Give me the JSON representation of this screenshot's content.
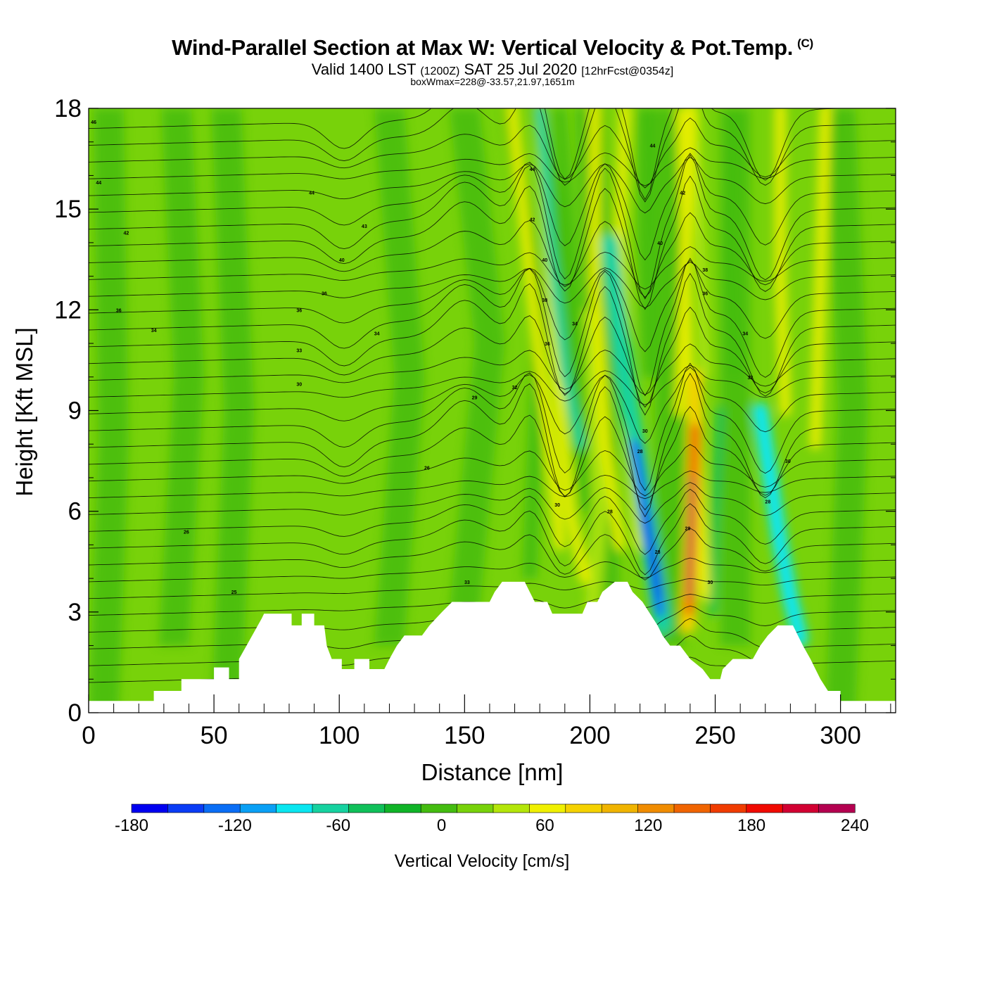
{
  "header": {
    "title": "Wind-Parallel Section at Max W: Vertical Velocity & Pot.Temp.",
    "copyright": "(C)",
    "valid_prefix": "Valid 1400 LST",
    "valid_zulu": "(1200Z)",
    "valid_date": "SAT 25 Jul 2020",
    "forecast": "[12hrFcst@0354z]",
    "box_wmax": "boxWmax=228@-33.57,21.97,1651m"
  },
  "chart_data": {
    "type": "heatmap",
    "title": "Wind-Parallel Section at Max W: Vertical Velocity & Pot.Temp.",
    "xlabel": "Distance [nm]",
    "ylabel": "Height [Kft MSL]",
    "xlim": [
      0,
      322
    ],
    "ylim": [
      0,
      18
    ],
    "x_ticks": [
      0,
      50,
      100,
      150,
      200,
      250,
      300
    ],
    "y_ticks": [
      0,
      3,
      6,
      9,
      12,
      15,
      18
    ],
    "colorbar": {
      "label": "Vertical Velocity [cm/s]",
      "min": -180,
      "max": 240,
      "step": 20,
      "tick_values": [
        -180,
        -120,
        -60,
        0,
        60,
        120,
        180,
        240
      ],
      "colors": [
        "#0000f0",
        "#0a3cf5",
        "#0a6ef5",
        "#0aa0f5",
        "#0ae6f0",
        "#16d2a0",
        "#10c05a",
        "#10b428",
        "#44bc10",
        "#78d20a",
        "#b4e60a",
        "#f0f000",
        "#f5d200",
        "#f0b400",
        "#f08c00",
        "#f06400",
        "#f03c00",
        "#f00a00",
        "#d20032",
        "#b40050"
      ]
    },
    "terrain": [
      [
        0,
        0.35
      ],
      [
        26,
        0.35
      ],
      [
        26,
        0.65
      ],
      [
        37,
        0.65
      ],
      [
        37,
        1.0
      ],
      [
        50,
        1.0
      ],
      [
        50,
        1.35
      ],
      [
        56,
        1.35
      ],
      [
        56,
        1.0
      ],
      [
        60,
        1.0
      ],
      [
        60,
        1.6
      ],
      [
        63,
        2.0
      ],
      [
        66,
        2.4
      ],
      [
        69,
        2.8
      ],
      [
        70,
        2.95
      ],
      [
        81,
        2.95
      ],
      [
        81,
        2.6
      ],
      [
        85,
        2.6
      ],
      [
        85,
        2.95
      ],
      [
        90,
        2.95
      ],
      [
        90,
        2.6
      ],
      [
        94,
        2.6
      ],
      [
        95,
        2.0
      ],
      [
        97,
        1.6
      ],
      [
        101,
        1.6
      ],
      [
        101,
        1.3
      ],
      [
        106,
        1.3
      ],
      [
        106,
        1.6
      ],
      [
        112,
        1.6
      ],
      [
        112,
        1.3
      ],
      [
        118,
        1.3
      ],
      [
        120,
        1.6
      ],
      [
        123,
        2.0
      ],
      [
        126,
        2.3
      ],
      [
        133,
        2.3
      ],
      [
        136,
        2.6
      ],
      [
        141,
        3.0
      ],
      [
        145,
        3.3
      ],
      [
        160,
        3.3
      ],
      [
        162,
        3.6
      ],
      [
        165,
        3.9
      ],
      [
        174,
        3.9
      ],
      [
        176,
        3.6
      ],
      [
        178,
        3.3
      ],
      [
        183,
        3.3
      ],
      [
        185,
        2.95
      ],
      [
        195,
        2.95
      ],
      [
        197,
        2.95
      ],
      [
        199,
        3.3
      ],
      [
        203,
        3.3
      ],
      [
        205,
        3.6
      ],
      [
        210,
        3.9
      ],
      [
        215,
        3.9
      ],
      [
        217,
        3.6
      ],
      [
        221,
        3.3
      ],
      [
        224,
        2.95
      ],
      [
        227,
        2.6
      ],
      [
        229,
        2.3
      ],
      [
        232,
        2.0
      ],
      [
        236,
        2.0
      ],
      [
        240,
        1.6
      ],
      [
        245,
        1.3
      ],
      [
        248,
        1.0
      ],
      [
        252,
        1.0
      ],
      [
        253,
        1.3
      ],
      [
        257,
        1.6
      ],
      [
        265,
        1.6
      ],
      [
        268,
        2.0
      ],
      [
        271,
        2.3
      ],
      [
        275,
        2.6
      ],
      [
        281,
        2.6
      ],
      [
        283,
        2.3
      ],
      [
        285,
        2.0
      ],
      [
        288,
        1.6
      ],
      [
        290,
        1.3
      ],
      [
        292,
        1.0
      ],
      [
        295,
        0.65
      ],
      [
        300,
        0.65
      ],
      [
        300,
        0.35
      ],
      [
        322,
        0.35
      ]
    ],
    "isentrope_labels": [
      {
        "x": 2,
        "y": 17.6,
        "text": "46"
      },
      {
        "x": 4,
        "y": 15.8,
        "text": "44"
      },
      {
        "x": 15,
        "y": 14.3,
        "text": "42"
      },
      {
        "x": 89,
        "y": 15.5,
        "text": "44"
      },
      {
        "x": 110,
        "y": 14.5,
        "text": "43"
      },
      {
        "x": 101,
        "y": 13.5,
        "text": "40"
      },
      {
        "x": 94,
        "y": 12.5,
        "text": "36"
      },
      {
        "x": 12,
        "y": 12.0,
        "text": "36"
      },
      {
        "x": 84,
        "y": 12.0,
        "text": "36"
      },
      {
        "x": 26,
        "y": 11.4,
        "text": "34"
      },
      {
        "x": 115,
        "y": 11.3,
        "text": "34"
      },
      {
        "x": 84,
        "y": 10.8,
        "text": "33"
      },
      {
        "x": 84,
        "y": 9.8,
        "text": "30"
      },
      {
        "x": 154,
        "y": 9.4,
        "text": "29"
      },
      {
        "x": 170,
        "y": 9.7,
        "text": "32"
      },
      {
        "x": 135,
        "y": 7.3,
        "text": "26"
      },
      {
        "x": 39,
        "y": 5.4,
        "text": "26"
      },
      {
        "x": 58,
        "y": 3.6,
        "text": "25"
      },
      {
        "x": 151,
        "y": 3.9,
        "text": "33"
      },
      {
        "x": 177,
        "y": 16.2,
        "text": "44"
      },
      {
        "x": 177,
        "y": 14.7,
        "text": "42"
      },
      {
        "x": 182,
        "y": 13.5,
        "text": "40"
      },
      {
        "x": 182,
        "y": 12.3,
        "text": "38"
      },
      {
        "x": 183,
        "y": 11.0,
        "text": "36"
      },
      {
        "x": 194,
        "y": 11.6,
        "text": "34"
      },
      {
        "x": 187,
        "y": 6.2,
        "text": "30"
      },
      {
        "x": 208,
        "y": 6.0,
        "text": "28"
      },
      {
        "x": 225,
        "y": 16.9,
        "text": "44"
      },
      {
        "x": 237,
        "y": 15.5,
        "text": "42"
      },
      {
        "x": 228,
        "y": 14.0,
        "text": "40"
      },
      {
        "x": 246,
        "y": 13.2,
        "text": "38"
      },
      {
        "x": 246,
        "y": 12.5,
        "text": "36"
      },
      {
        "x": 262,
        "y": 11.3,
        "text": "34"
      },
      {
        "x": 264,
        "y": 10.0,
        "text": "32"
      },
      {
        "x": 222,
        "y": 8.4,
        "text": "30"
      },
      {
        "x": 220,
        "y": 7.8,
        "text": "28"
      },
      {
        "x": 227,
        "y": 4.8,
        "text": "28"
      },
      {
        "x": 239,
        "y": 5.5,
        "text": "28"
      },
      {
        "x": 248,
        "y": 3.9,
        "text": "30"
      },
      {
        "x": 271,
        "y": 6.3,
        "text": "28"
      },
      {
        "x": 279,
        "y": 7.5,
        "text": "30"
      }
    ]
  }
}
